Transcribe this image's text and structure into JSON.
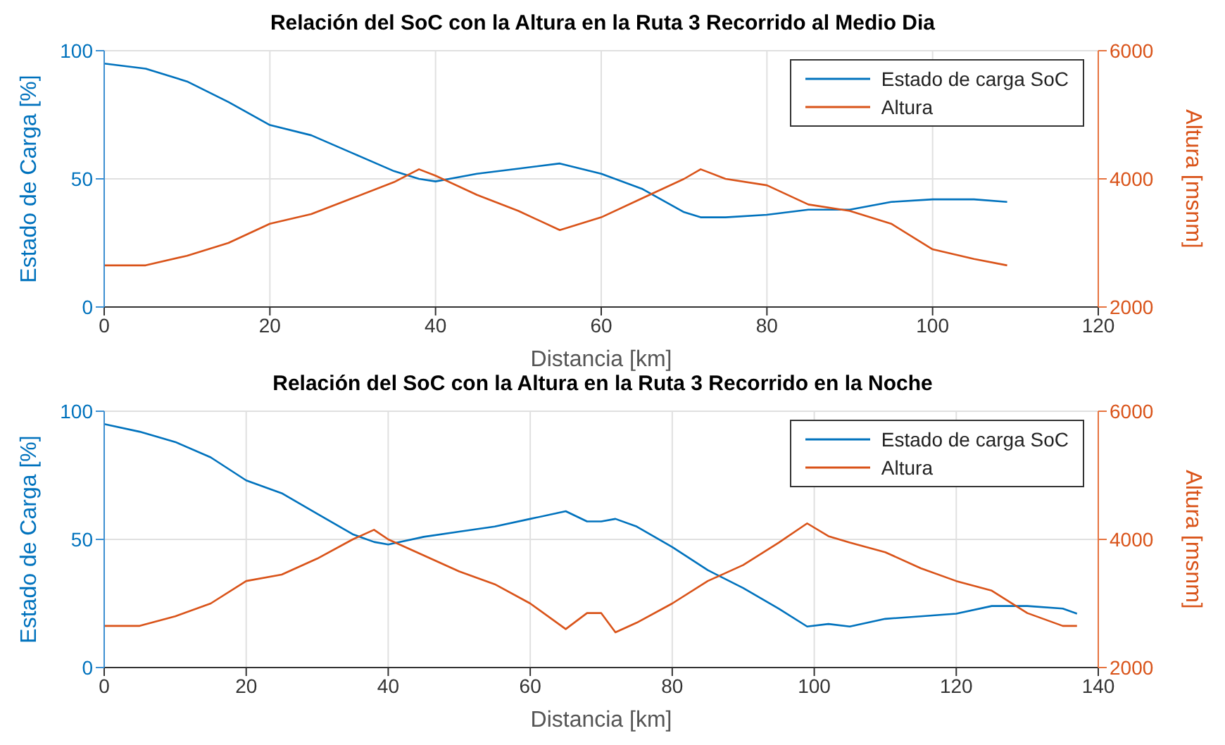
{
  "chart_data": [
    {
      "type": "line",
      "title": "Relación del SoC con la Altura en la Ruta 3 Recorrido al Medio Dia",
      "xlabel": "Distancia [km]",
      "ylabel": "Estado de Carga [%]",
      "y2label": "Altura [msnm]",
      "xlim": [
        0,
        120
      ],
      "xticks": [
        0,
        20,
        40,
        60,
        80,
        100,
        120
      ],
      "ylim": [
        0,
        100
      ],
      "yticks": [
        0,
        50,
        100
      ],
      "y2lim": [
        2000,
        6000
      ],
      "y2ticks": [
        2000,
        4000,
        6000
      ],
      "grid": true,
      "legend": "top right",
      "x": [
        0,
        5,
        10,
        15,
        20,
        25,
        30,
        35,
        38,
        40,
        45,
        50,
        55,
        60,
        65,
        70,
        72,
        75,
        80,
        85,
        90,
        95,
        100,
        105,
        109
      ],
      "series": [
        {
          "name": "Estado de carga SoC",
          "color": "#0072bd",
          "values": [
            95,
            93,
            88,
            80,
            71,
            67,
            60,
            53,
            50,
            49,
            52,
            54,
            56,
            52,
            46,
            37,
            35,
            35,
            36,
            38,
            38,
            41,
            42,
            42,
            41
          ]
        },
        {
          "name": "Altura",
          "color": "#d95319",
          "axis": "y2",
          "values": [
            2650,
            2650,
            2800,
            3000,
            3300,
            3450,
            3700,
            3950,
            4150,
            4050,
            3750,
            3500,
            3200,
            3400,
            3700,
            4000,
            4150,
            4000,
            3900,
            3600,
            3500,
            3300,
            2900,
            2750,
            2650
          ]
        }
      ]
    },
    {
      "type": "line",
      "title": "Relación del SoC con la Altura en la Ruta 3 Recorrido en la Noche",
      "xlabel": "Distancia [km]",
      "ylabel": "Estado de Carga [%]",
      "y2label": "Altura [msnm]",
      "xlim": [
        0,
        140
      ],
      "xticks": [
        0,
        20,
        40,
        60,
        80,
        100,
        120,
        140
      ],
      "ylim": [
        0,
        100
      ],
      "yticks": [
        0,
        50,
        100
      ],
      "y2lim": [
        2000,
        6000
      ],
      "y2ticks": [
        2000,
        4000,
        6000
      ],
      "grid": true,
      "legend": "top right",
      "x": [
        0,
        5,
        10,
        15,
        20,
        25,
        30,
        35,
        38,
        40,
        45,
        50,
        55,
        60,
        65,
        68,
        70,
        72,
        75,
        80,
        85,
        90,
        95,
        99,
        102,
        105,
        110,
        115,
        120,
        125,
        130,
        135,
        137
      ],
      "series": [
        {
          "name": "Estado de carga SoC",
          "color": "#0072bd",
          "values": [
            95,
            92,
            88,
            82,
            73,
            68,
            60,
            52,
            49,
            48,
            51,
            53,
            55,
            58,
            61,
            57,
            57,
            58,
            55,
            47,
            38,
            31,
            23,
            16,
            17,
            16,
            19,
            20,
            21,
            24,
            24,
            23,
            21
          ]
        },
        {
          "name": "Altura",
          "color": "#d95319",
          "axis": "y2",
          "values": [
            2650,
            2650,
            2800,
            3000,
            3350,
            3450,
            3700,
            4000,
            4150,
            4000,
            3750,
            3500,
            3300,
            3000,
            2600,
            2850,
            2850,
            2550,
            2700,
            3000,
            3350,
            3600,
            3950,
            4250,
            4050,
            3950,
            3800,
            3550,
            3350,
            3200,
            2850,
            2650,
            2650
          ]
        }
      ]
    }
  ]
}
